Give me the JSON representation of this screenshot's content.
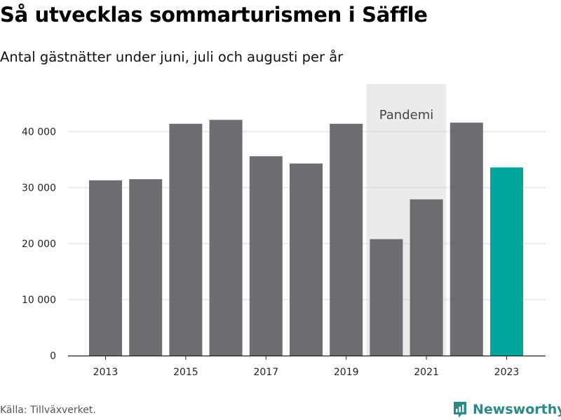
{
  "header": {
    "title": "Så utvecklas sommarturismen i Säffle",
    "subtitle": "Antal gästnätter under juni, juli och augusti per år"
  },
  "footer": {
    "source": "Källa: Tillväxverket.",
    "brand": "Newsworthy"
  },
  "colors": {
    "bar": "#6d6c71",
    "highlight": "#00a69c",
    "pandemic_band": "#ebebeb",
    "grid": "#d9d9d9",
    "brand": "#2a8a86"
  },
  "chart_data": {
    "type": "bar",
    "title": "Så utvecklas sommarturismen i Säffle",
    "subtitle": "Antal gästnätter under juni, juli och augusti per år",
    "categories": [
      "2013",
      "2014",
      "2015",
      "2016",
      "2017",
      "2018",
      "2019",
      "2020",
      "2021",
      "2022",
      "2023"
    ],
    "values": [
      31300,
      31500,
      41400,
      42100,
      35600,
      34300,
      41400,
      20800,
      27900,
      41600,
      33600
    ],
    "highlight": "2023",
    "xticks": [
      "2013",
      "2015",
      "2017",
      "2019",
      "2021",
      "2023"
    ],
    "yticks": [
      0,
      10000,
      20000,
      30000,
      40000
    ],
    "ytick_labels": [
      "0",
      "10 000",
      "20 000",
      "30 000",
      "40 000"
    ],
    "ylim": [
      0,
      48500
    ],
    "xlabel": "",
    "ylabel": "",
    "grid": true,
    "annotations": [
      {
        "label": "Pandemi",
        "from": "2020",
        "to": "2021"
      }
    ]
  }
}
